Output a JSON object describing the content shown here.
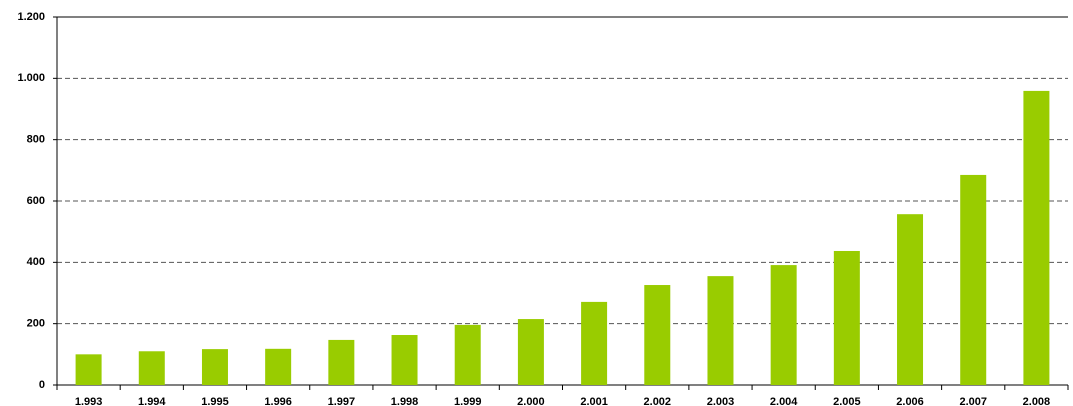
{
  "chart_data": {
    "type": "bar",
    "categories": [
      "1.993",
      "1.994",
      "1.995",
      "1.996",
      "1.997",
      "1.998",
      "1.999",
      "2.000",
      "2.001",
      "2.002",
      "2.003",
      "2.004",
      "2.005",
      "2.006",
      "2.007",
      "2.008"
    ],
    "values": [
      100,
      110,
      117,
      118,
      147,
      163,
      196,
      215,
      271,
      326,
      355,
      391,
      437,
      557,
      685,
      959
    ],
    "color": "#99cc00",
    "ylim": [
      0,
      1200
    ],
    "yticks": [
      0,
      200,
      400,
      600,
      800,
      {
        "value": 1000,
        "label": "1.000"
      },
      {
        "value": 1200,
        "label": "1.200"
      }
    ],
    "grid": true
  }
}
